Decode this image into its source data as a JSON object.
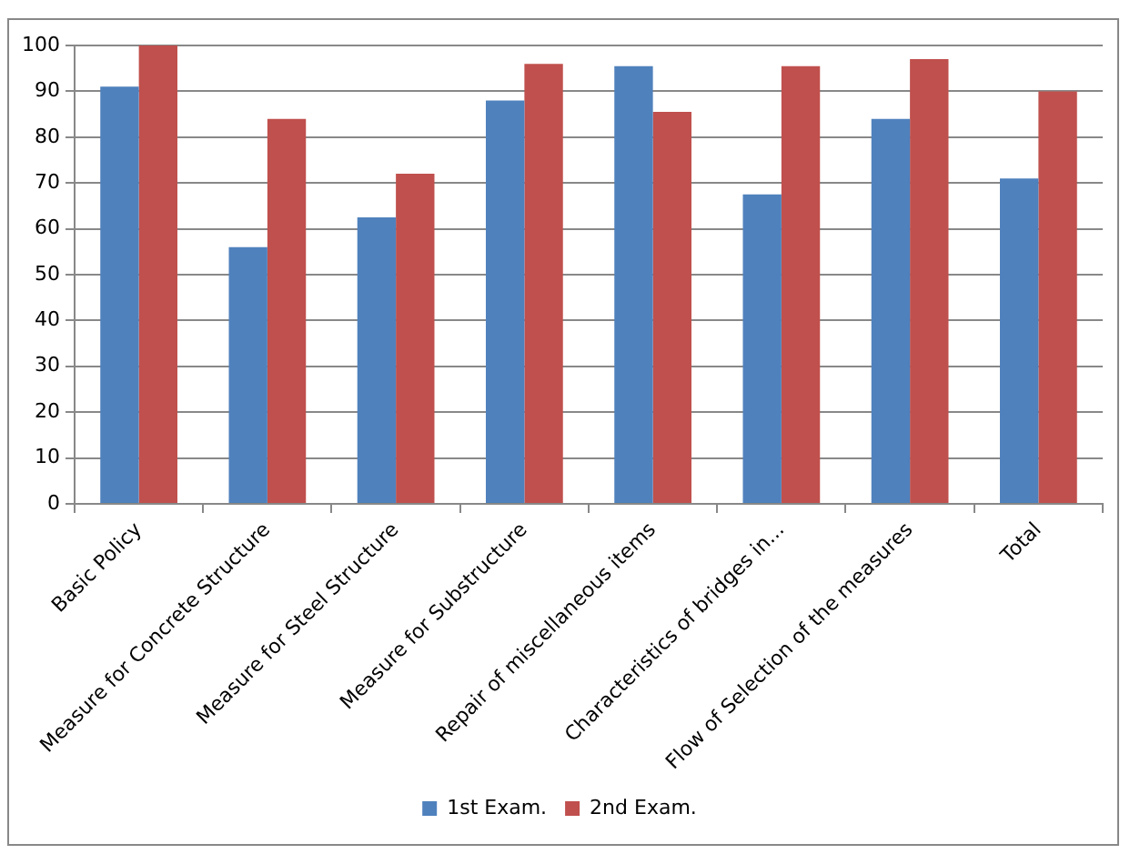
{
  "chart_data": {
    "type": "bar",
    "categories": [
      "Basic Policy",
      "Measure for Concrete Structure",
      "Measure for Steel Structure",
      "Measure for Substructure",
      "Repair of miscellaneous items",
      "Characteristics of bridges in...",
      "Flow of Selection of the measures",
      "Total"
    ],
    "series": [
      {
        "name": "1st Exam.",
        "color": "#4f81bd",
        "values": [
          91,
          56,
          62.5,
          88,
          95.5,
          67.5,
          84,
          71
        ]
      },
      {
        "name": "2nd Exam.",
        "color": "#c0504d",
        "values": [
          100,
          84,
          72,
          96,
          85.5,
          95.5,
          97,
          90
        ]
      }
    ],
    "ylim": [
      0,
      100
    ],
    "yticks": [
      0,
      10,
      20,
      30,
      40,
      50,
      60,
      70,
      80,
      90,
      100
    ],
    "grid": "y",
    "legend": "bottom"
  }
}
